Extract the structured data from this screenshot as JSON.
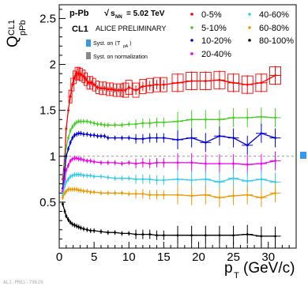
{
  "header": {
    "system": "p-Pb",
    "energy_sqrt": "s",
    "energy_sub": "NN",
    "energy_value": "= 5.02 TeV",
    "estimator": "CL1",
    "status": "ALICE PRELIMINARY",
    "syst_tpa_prefix": "Syst. on ⟨T",
    "syst_tpa_sub": "pA",
    "syst_tpa_suffix": "⟩",
    "syst_norm": "Syst. on normalization",
    "watermark": "ALI-PREL-79629"
  },
  "axes": {
    "y_main": "Q",
    "y_sub": "pPb",
    "y_sup": "CL1",
    "x_main": "p",
    "x_sub": "T",
    "x_unit": "(GeV/c)",
    "x_ticks": [
      "0",
      "5",
      "10",
      "15",
      "20",
      "25",
      "30"
    ],
    "y_ticks": [
      "0.5",
      "1",
      "1.5",
      "2",
      "2.5"
    ]
  },
  "colors": {
    "c0_5": "#ff0000",
    "c5_10": "#44cc22",
    "c10_20": "#0000dd",
    "c20_40": "#ee00ee",
    "c40_60": "#33ccee",
    "c60_80": "#ee9900",
    "c80_100": "#000000",
    "tpa_box": "#3399ee",
    "norm_box": "#888888"
  },
  "chart_data": {
    "type": "scatter",
    "title": "",
    "xlabel": "pT (GeV/c)",
    "ylabel": "Q_pPb^CL1",
    "xlim": [
      0,
      34
    ],
    "ylim": [
      0,
      2.65
    ],
    "reference_line": 1,
    "legend_position": "top-right",
    "series": [
      {
        "name": "0-5%",
        "color": "#ff0000",
        "x": [
          0.5,
          0.8,
          1.0,
          1.3,
          1.6,
          1.9,
          2.2,
          2.5,
          2.8,
          3.1,
          3.5,
          3.8,
          4.2,
          4.6,
          5.0,
          5.5,
          6.0,
          6.5,
          7.0,
          7.5,
          8.0,
          8.5,
          9.0,
          9.5,
          10,
          11,
          12,
          13,
          14,
          15,
          17,
          19,
          21,
          23,
          25,
          27,
          29,
          31
        ],
        "y": [
          0.75,
          1.0,
          1.3,
          1.5,
          1.65,
          1.78,
          1.86,
          1.9,
          1.9,
          1.89,
          1.87,
          1.84,
          1.8,
          1.8,
          1.78,
          1.75,
          1.74,
          1.74,
          1.73,
          1.73,
          1.72,
          1.72,
          1.72,
          1.72,
          1.75,
          1.72,
          1.76,
          1.77,
          1.78,
          1.78,
          1.8,
          1.82,
          1.82,
          1.83,
          1.8,
          1.78,
          1.8,
          1.88
        ]
      },
      {
        "name": "5-10%",
        "color": "#44cc22",
        "x": [
          0.5,
          0.8,
          1.0,
          1.3,
          1.6,
          1.9,
          2.2,
          2.5,
          2.8,
          3.1,
          3.5,
          4.0,
          4.5,
          5.0,
          5.5,
          6.0,
          6.5,
          7.0,
          8.0,
          9.0,
          10,
          11,
          12,
          13,
          14,
          15,
          17,
          19,
          21,
          23,
          25,
          27,
          29,
          31
        ],
        "y": [
          0.7,
          0.9,
          1.1,
          1.2,
          1.28,
          1.32,
          1.35,
          1.37,
          1.38,
          1.38,
          1.38,
          1.38,
          1.37,
          1.36,
          1.35,
          1.35,
          1.34,
          1.34,
          1.34,
          1.34,
          1.35,
          1.35,
          1.36,
          1.36,
          1.37,
          1.37,
          1.38,
          1.4,
          1.4,
          1.4,
          1.42,
          1.42,
          1.43,
          1.42
        ]
      },
      {
        "name": "10-20%",
        "color": "#0000dd",
        "x": [
          0.5,
          0.8,
          1.0,
          1.3,
          1.6,
          1.9,
          2.2,
          2.5,
          2.8,
          3.1,
          3.5,
          4.0,
          4.5,
          5.0,
          5.5,
          6.0,
          6.5,
          7.0,
          8.0,
          9.0,
          10,
          11,
          12,
          13,
          14,
          15,
          17,
          19,
          21,
          23,
          25,
          27,
          29,
          31
        ],
        "y": [
          0.65,
          0.85,
          1.0,
          1.08,
          1.15,
          1.2,
          1.23,
          1.24,
          1.25,
          1.25,
          1.24,
          1.24,
          1.23,
          1.23,
          1.22,
          1.22,
          1.22,
          1.2,
          1.2,
          1.2,
          1.2,
          1.19,
          1.19,
          1.2,
          1.2,
          1.2,
          1.18,
          1.2,
          1.15,
          1.22,
          1.2,
          1.12,
          1.25,
          1.2
        ]
      },
      {
        "name": "20-40%",
        "color": "#ee00ee",
        "x": [
          0.5,
          0.8,
          1.0,
          1.3,
          1.6,
          1.9,
          2.2,
          2.5,
          2.8,
          3.1,
          3.5,
          4.0,
          4.5,
          5.0,
          6.0,
          7.0,
          8.0,
          9.0,
          10,
          11,
          12,
          13,
          14,
          15,
          17,
          19,
          21,
          23,
          25,
          27,
          29,
          31
        ],
        "y": [
          0.62,
          0.75,
          0.85,
          0.9,
          0.95,
          0.97,
          0.98,
          0.98,
          0.97,
          0.97,
          0.96,
          0.95,
          0.95,
          0.94,
          0.93,
          0.93,
          0.93,
          0.92,
          0.93,
          0.92,
          0.93,
          0.92,
          0.93,
          0.93,
          0.93,
          0.93,
          0.92,
          0.92,
          0.92,
          0.91,
          0.92,
          0.95
        ]
      },
      {
        "name": "40-60%",
        "color": "#33ccee",
        "x": [
          0.5,
          0.8,
          1.0,
          1.3,
          1.6,
          1.9,
          2.2,
          2.5,
          2.8,
          3.1,
          3.5,
          4.0,
          4.5,
          5.0,
          6.0,
          7.0,
          8.0,
          9.0,
          10,
          11,
          12,
          13,
          14,
          15,
          17,
          19,
          21,
          23,
          25,
          27,
          29,
          31
        ],
        "y": [
          0.58,
          0.68,
          0.72,
          0.75,
          0.78,
          0.79,
          0.8,
          0.8,
          0.8,
          0.8,
          0.79,
          0.79,
          0.79,
          0.78,
          0.78,
          0.77,
          0.76,
          0.76,
          0.76,
          0.75,
          0.75,
          0.75,
          0.74,
          0.74,
          0.75,
          0.74,
          0.75,
          0.72,
          0.76,
          0.73,
          0.75,
          0.72
        ]
      },
      {
        "name": "60-80%",
        "color": "#ee9900",
        "x": [
          0.5,
          0.8,
          1.0,
          1.3,
          1.6,
          1.9,
          2.2,
          2.5,
          2.8,
          3.1,
          3.5,
          4.0,
          4.5,
          5.0,
          6.0,
          7.0,
          8.0,
          9.0,
          10,
          11,
          12,
          13,
          14,
          15,
          17,
          19,
          21,
          23,
          25,
          27,
          29,
          31
        ],
        "y": [
          0.55,
          0.6,
          0.62,
          0.64,
          0.64,
          0.64,
          0.64,
          0.64,
          0.63,
          0.63,
          0.62,
          0.62,
          0.61,
          0.61,
          0.6,
          0.6,
          0.6,
          0.6,
          0.59,
          0.59,
          0.59,
          0.58,
          0.58,
          0.58,
          0.58,
          0.57,
          0.58,
          0.55,
          0.57,
          0.58,
          0.55,
          0.6
        ]
      },
      {
        "name": "80-100%",
        "color": "#000000",
        "x": [
          0.5,
          0.8,
          1.0,
          1.3,
          1.6,
          1.9,
          2.2,
          2.5,
          2.8,
          3.1,
          3.5,
          4.0,
          4.5,
          5.0,
          6.0,
          7.0,
          8.0,
          9.0,
          10,
          11,
          12,
          13,
          14,
          15,
          17,
          19,
          21,
          23,
          25,
          27,
          29,
          31
        ],
        "y": [
          0.48,
          0.4,
          0.35,
          0.31,
          0.28,
          0.26,
          0.25,
          0.24,
          0.23,
          0.22,
          0.21,
          0.2,
          0.19,
          0.19,
          0.18,
          0.17,
          0.17,
          0.16,
          0.16,
          0.15,
          0.15,
          0.15,
          0.14,
          0.14,
          0.14,
          0.14,
          0.14,
          0.14,
          0.14,
          0.15,
          0.13,
          0.13
        ]
      }
    ]
  }
}
